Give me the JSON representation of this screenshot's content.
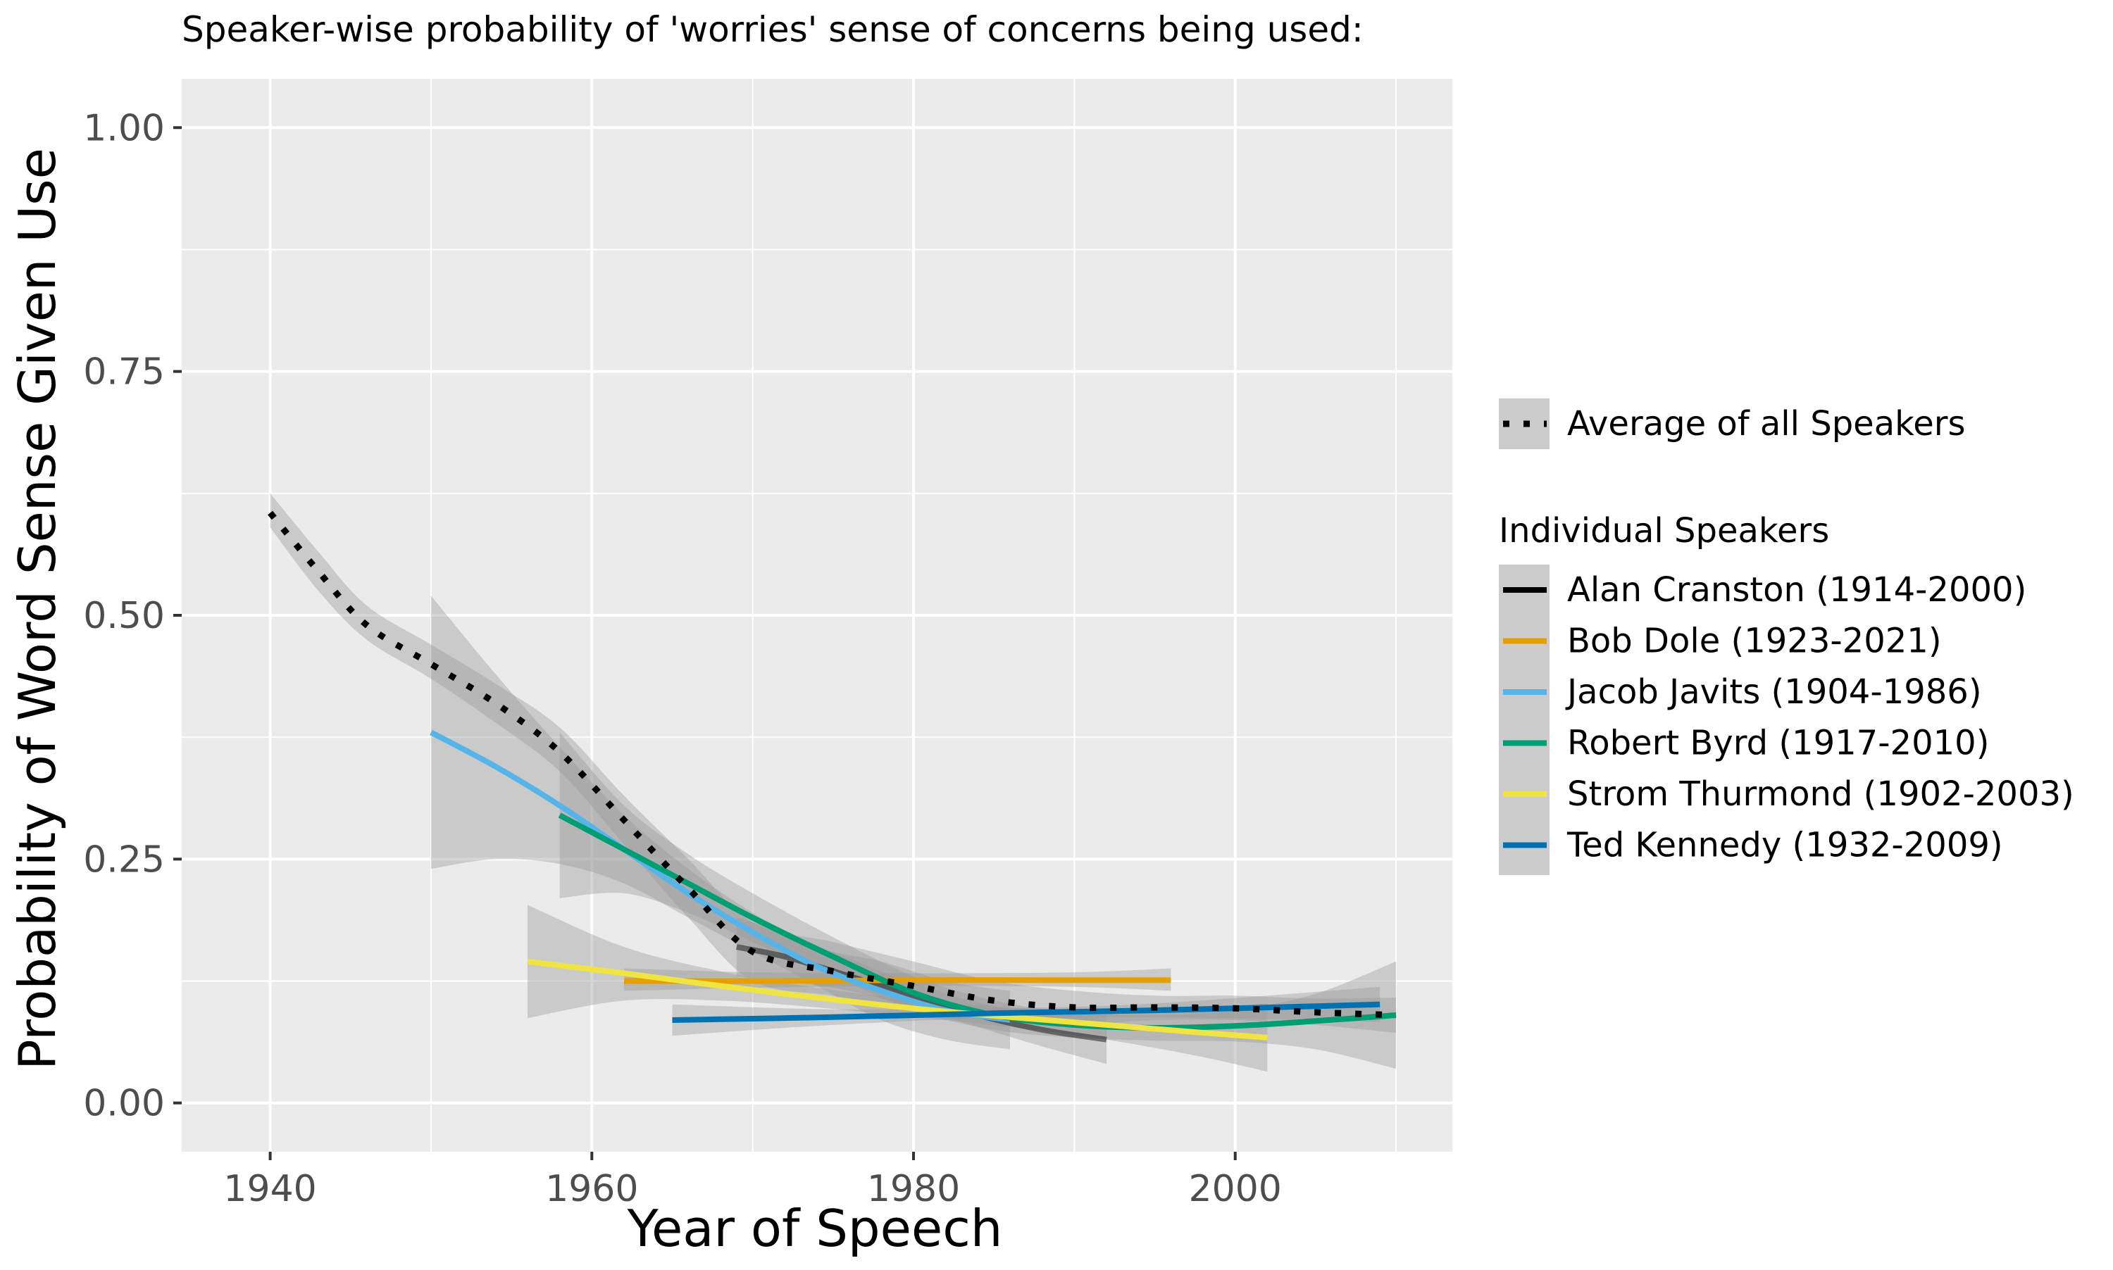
{
  "chart_data": {
    "type": "line",
    "title": "Speaker-wise probability of 'worries' sense of concerns being used:",
    "xlabel": "Year of Speech",
    "ylabel": "Probability of Word Sense Given Use",
    "xlim": [
      1934.5,
      2013.5
    ],
    "ylim": [
      -0.05,
      1.05
    ],
    "x_ticks": [
      1940,
      1960,
      1980,
      2000
    ],
    "x_tick_labels": [
      "1940",
      "1960",
      "1980",
      "2000"
    ],
    "y_ticks": [
      0,
      0.25,
      0.5,
      0.75,
      1.0
    ],
    "y_tick_labels": [
      "0.00",
      "0.25",
      "0.50",
      "0.75",
      "1.00"
    ],
    "grid": true,
    "legend_position": "right",
    "average": {
      "name": "Average of all Speakers",
      "color": "#000000",
      "style": "dotted",
      "x": [
        1940,
        1943,
        1946,
        1950,
        1954,
        1958,
        1962,
        1966,
        1970,
        1975,
        1980,
        1985,
        1990,
        1995,
        2000,
        2005,
        2010
      ],
      "y": [
        0.605,
        0.545,
        0.49,
        0.45,
        0.41,
        0.36,
        0.29,
        0.22,
        0.155,
        0.135,
        0.12,
        0.105,
        0.098,
        0.098,
        0.097,
        0.093,
        0.09
      ],
      "lower": [
        0.59,
        0.525,
        0.475,
        0.435,
        0.39,
        0.34,
        0.265,
        0.19,
        0.125,
        0.11,
        0.095,
        0.085,
        0.08,
        0.085,
        0.085,
        0.08,
        0.072
      ],
      "upper": [
        0.625,
        0.565,
        0.51,
        0.47,
        0.43,
        0.385,
        0.315,
        0.25,
        0.185,
        0.165,
        0.145,
        0.125,
        0.115,
        0.11,
        0.11,
        0.107,
        0.108
      ]
    },
    "legend_title": "Individual Speakers",
    "series": [
      {
        "name": "Alan Cranston (1914-2000)",
        "color": "#000000",
        "line_opacity": 0.45,
        "x": [
          1969,
          1972,
          1976,
          1980,
          1984,
          1988,
          1992
        ],
        "y": [
          0.16,
          0.15,
          0.13,
          0.11,
          0.09,
          0.075,
          0.065
        ],
        "lower": [
          0.13,
          0.125,
          0.115,
          0.098,
          0.078,
          0.058,
          0.04
        ],
        "upper": [
          0.19,
          0.175,
          0.148,
          0.123,
          0.103,
          0.092,
          0.09
        ]
      },
      {
        "name": "Bob Dole (1923-2021)",
        "color": "#E69F00",
        "x": [
          1962,
          1970,
          1980,
          1990,
          1996
        ],
        "y": [
          0.125,
          0.125,
          0.126,
          0.126,
          0.126
        ],
        "lower": [
          0.115,
          0.118,
          0.12,
          0.119,
          0.115
        ],
        "upper": [
          0.138,
          0.134,
          0.133,
          0.134,
          0.138
        ]
      },
      {
        "name": "Jacob Javits (1904-1986)",
        "color": "#56B4E9",
        "x": [
          1950,
          1954,
          1958,
          1962,
          1966,
          1970,
          1974,
          1978,
          1982,
          1986
        ],
        "y": [
          0.38,
          0.345,
          0.305,
          0.26,
          0.215,
          0.175,
          0.14,
          0.115,
          0.095,
          0.085
        ],
        "lower": [
          0.24,
          0.25,
          0.245,
          0.225,
          0.19,
          0.155,
          0.12,
          0.085,
          0.065,
          0.055
        ],
        "upper": [
          0.52,
          0.44,
          0.365,
          0.295,
          0.24,
          0.195,
          0.16,
          0.145,
          0.125,
          0.115
        ]
      },
      {
        "name": "Robert Byrd (1917-2010)",
        "color": "#009E73",
        "x": [
          1958,
          1962,
          1966,
          1970,
          1975,
          1980,
          1985,
          1990,
          1995,
          2000,
          2005,
          2010
        ],
        "y": [
          0.295,
          0.26,
          0.225,
          0.19,
          0.15,
          0.113,
          0.09,
          0.08,
          0.077,
          0.079,
          0.084,
          0.09
        ],
        "lower": [
          0.21,
          0.215,
          0.195,
          0.165,
          0.13,
          0.095,
          0.075,
          0.067,
          0.064,
          0.063,
          0.055,
          0.035
        ],
        "upper": [
          0.38,
          0.305,
          0.255,
          0.215,
          0.17,
          0.13,
          0.105,
          0.093,
          0.09,
          0.095,
          0.112,
          0.145
        ]
      },
      {
        "name": "Strom Thurmond (1902-2003)",
        "color": "#F0E442",
        "x": [
          1956,
          1962,
          1968,
          1974,
          1980,
          1986,
          1992,
          1998,
          2002
        ],
        "y": [
          0.145,
          0.133,
          0.12,
          0.108,
          0.097,
          0.088,
          0.08,
          0.072,
          0.067
        ],
        "lower": [
          0.087,
          0.105,
          0.105,
          0.098,
          0.088,
          0.078,
          0.065,
          0.047,
          0.032
        ],
        "upper": [
          0.203,
          0.16,
          0.135,
          0.118,
          0.106,
          0.098,
          0.095,
          0.097,
          0.102
        ]
      },
      {
        "name": "Ted Kennedy (1932-2009)",
        "color": "#0072B2",
        "x": [
          1965,
          1975,
          1985,
          1995,
          2009
        ],
        "y": [
          0.085,
          0.088,
          0.092,
          0.095,
          0.101
        ],
        "lower": [
          0.069,
          0.08,
          0.087,
          0.088,
          0.083
        ],
        "upper": [
          0.101,
          0.096,
          0.097,
          0.102,
          0.119
        ]
      }
    ]
  }
}
